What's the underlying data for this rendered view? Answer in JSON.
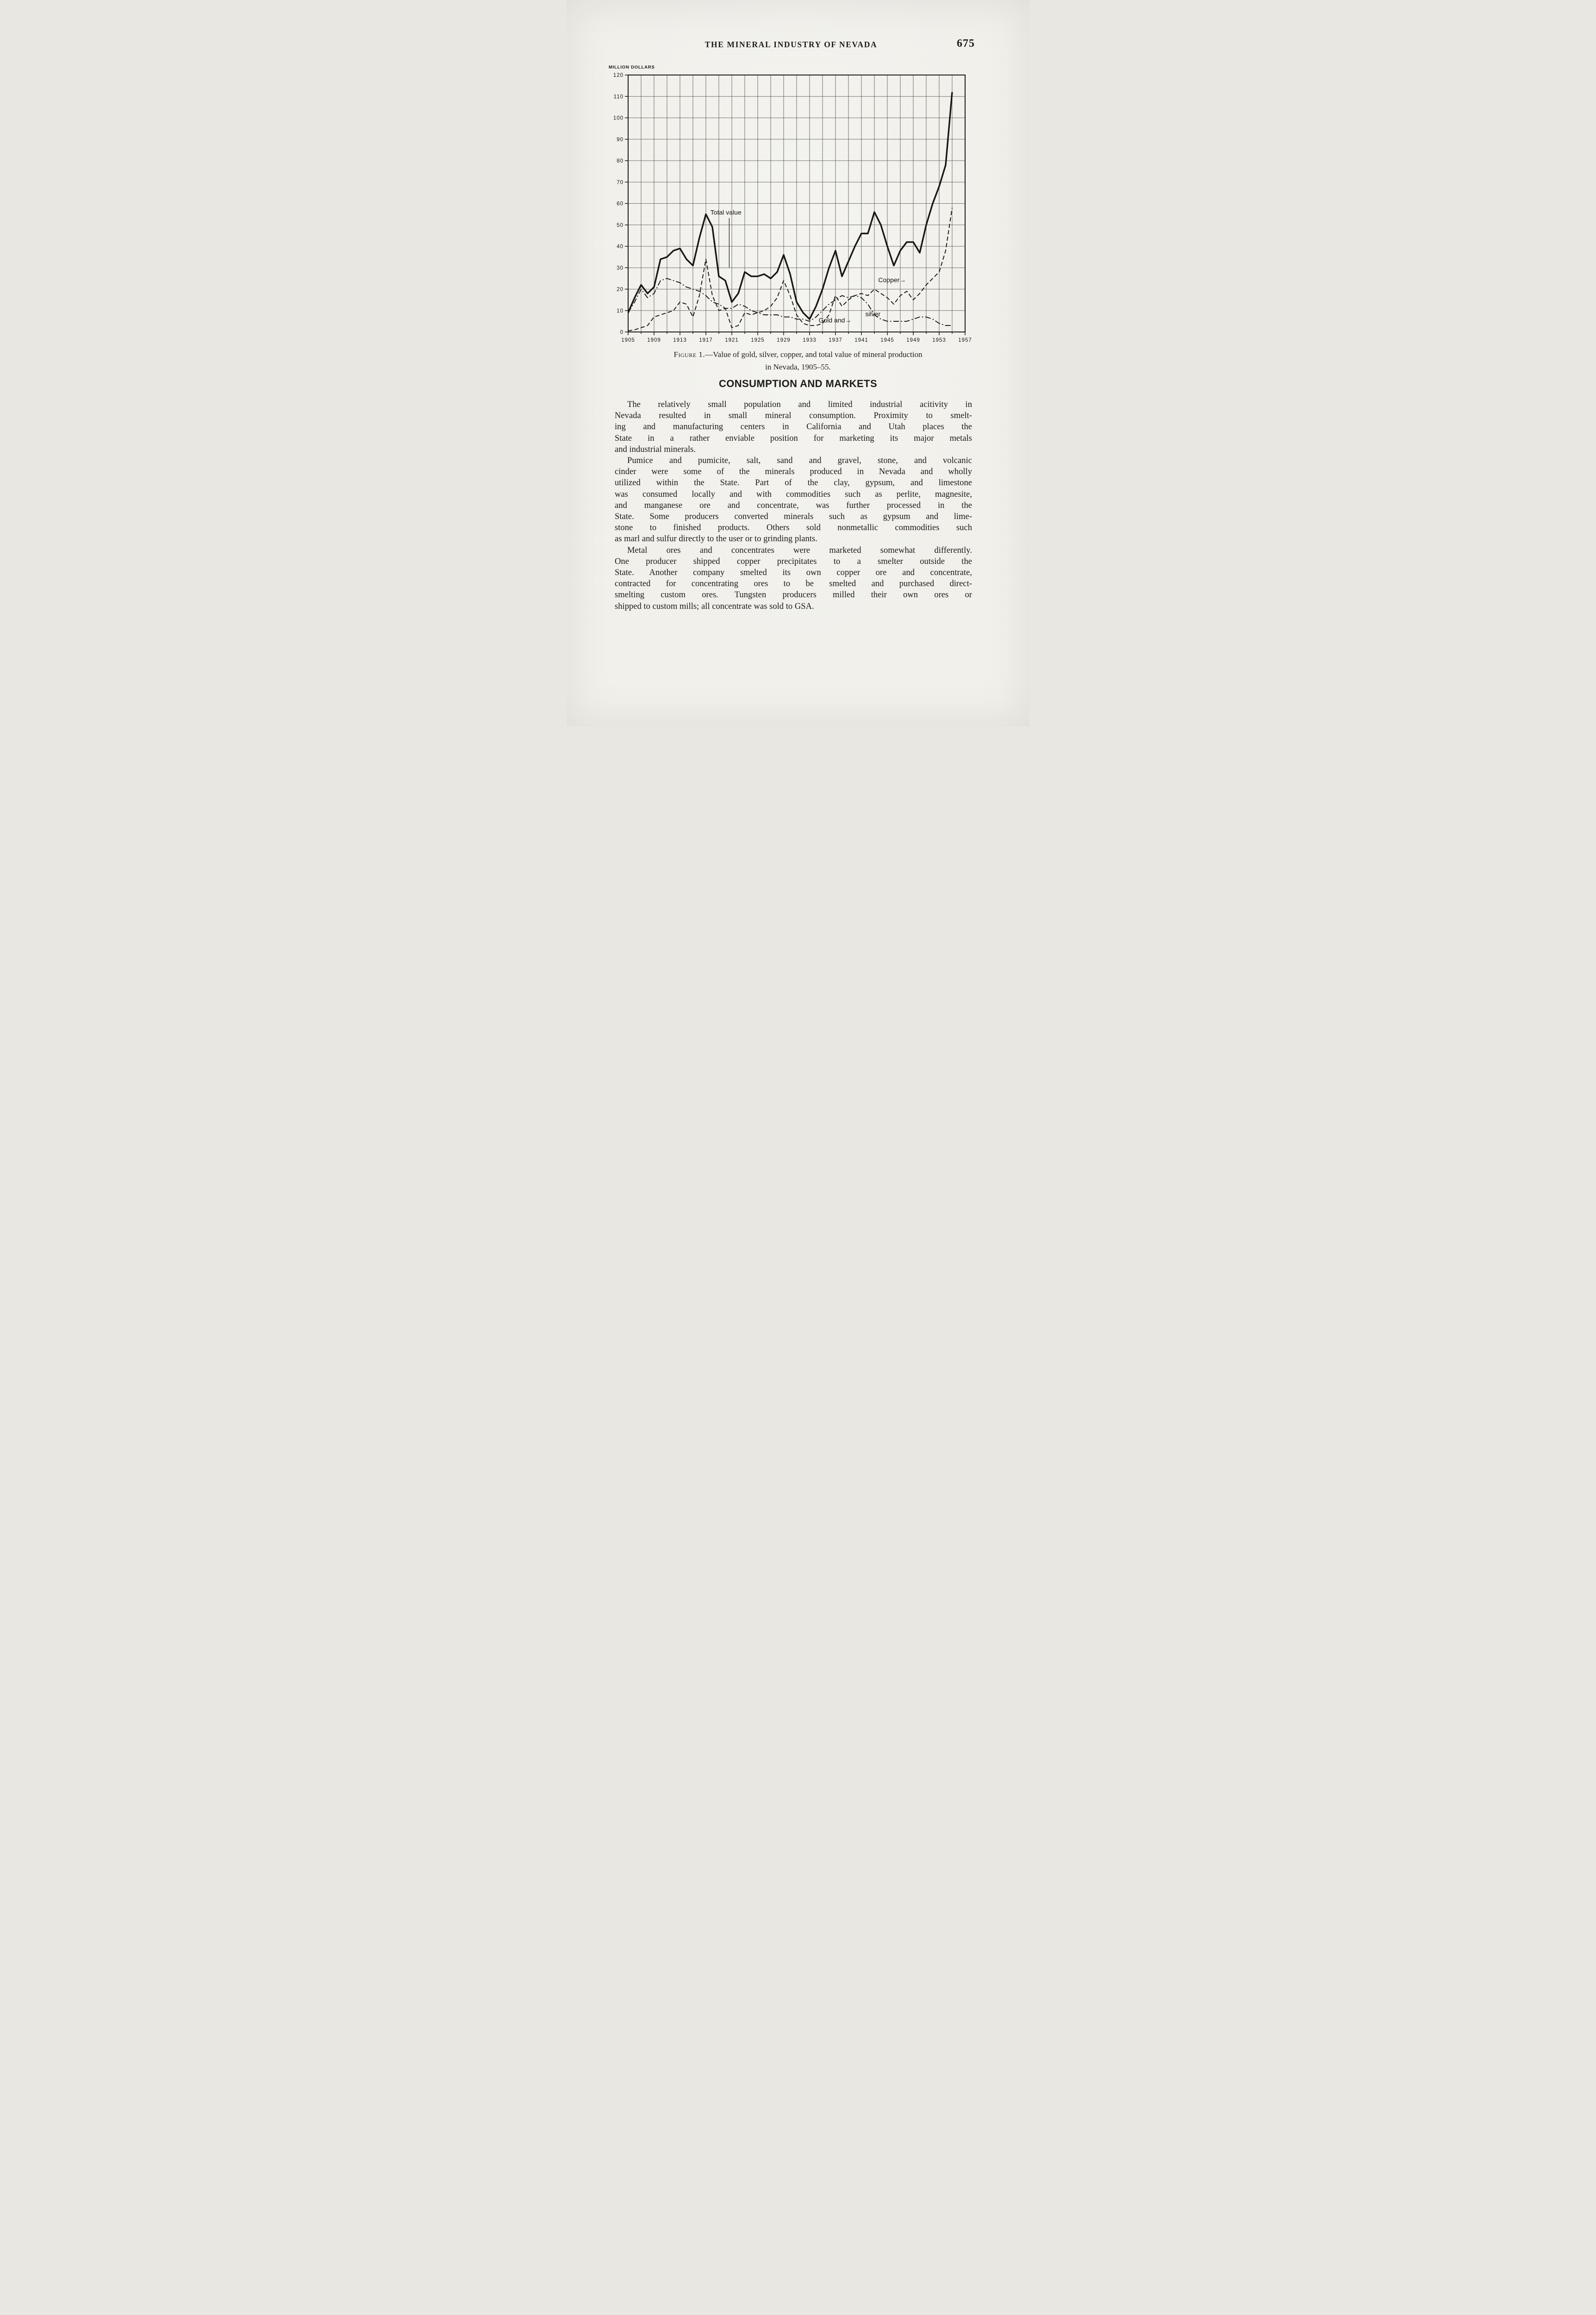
{
  "page": {
    "header_title": "THE MINERAL INDUSTRY OF NEVADA",
    "page_number": "675"
  },
  "figure": {
    "caption_label": "Figure 1.",
    "caption_text": "—Value of gold, silver, copper, and total value of mineral production",
    "caption_line2": "in Nevada, 1905–55."
  },
  "chart_data": {
    "type": "line",
    "title": "",
    "xlabel": "",
    "ylabel": "MILLION DOLLARS",
    "ylim": [
      0,
      120
    ],
    "ytick_step": 10,
    "xlim": [
      1905,
      1957
    ],
    "xgrid_step": 2,
    "xtick_step": 4,
    "x_tick_labels": [
      "1905",
      "1909",
      "1913",
      "1917",
      "1921",
      "1925",
      "1929",
      "1933",
      "1937",
      "1941",
      "1945",
      "1949",
      "1953",
      "1957"
    ],
    "x_start": 1905,
    "x_step": 1,
    "grid": true,
    "legend_position": "none",
    "series": [
      {
        "name": "Total value",
        "style": "solid",
        "width": 3.4,
        "values": [
          9,
          16,
          22,
          18,
          21,
          34,
          35,
          38,
          39,
          34,
          31,
          44,
          55,
          49,
          26,
          24,
          14,
          18,
          28,
          26,
          26,
          27,
          25,
          28,
          36,
          27,
          14,
          9,
          6,
          12,
          20,
          30,
          38,
          26,
          33,
          40,
          46,
          46,
          56,
          50,
          40,
          31,
          38,
          42,
          42,
          37,
          50,
          60,
          68,
          78,
          112
        ]
      },
      {
        "name": "Copper",
        "style": "dashed",
        "width": 1.9,
        "values": [
          0.5,
          1,
          2,
          3,
          7,
          8,
          9,
          10,
          14,
          13,
          7,
          17,
          34,
          17,
          10,
          11,
          2,
          3,
          9,
          8,
          9,
          10,
          12,
          16,
          24,
          17,
          8,
          4,
          3,
          3,
          4,
          8,
          17,
          12,
          15,
          17,
          18,
          17,
          20,
          18,
          16,
          13,
          17,
          19,
          15,
          18,
          22,
          25,
          28,
          38,
          58
        ]
      },
      {
        "name": "Gold and silver",
        "style": "dashdot",
        "width": 1.9,
        "values": [
          9,
          14,
          20,
          16,
          18,
          24,
          25,
          24,
          23,
          21,
          20,
          19,
          17,
          14,
          13,
          11,
          11,
          13,
          12,
          10,
          9,
          8,
          8,
          8,
          7,
          7,
          6,
          6,
          5,
          7,
          10,
          13,
          15,
          17,
          16,
          17,
          16,
          13,
          8,
          6,
          5,
          5,
          5,
          5,
          6,
          7,
          7,
          6,
          4,
          3,
          3
        ]
      }
    ],
    "annotations": [
      {
        "text": "Total value",
        "x": 1917.7,
        "y": 54.8,
        "leader": [
          1920.6,
          53.2,
          1920.6,
          30
        ]
      },
      {
        "text": "Copper→",
        "x": 1943.6,
        "y": 23.2
      },
      {
        "text": "Gold and→",
        "x": 1934.4,
        "y": 4.4
      },
      {
        "text": "silver",
        "x": 1941.6,
        "y": 7.4
      }
    ]
  },
  "content": {
    "section_heading": "CONSUMPTION AND MARKETS",
    "paragraphs": [
      {
        "lines": [
          "The relatively small population and limited industrial acitivity in",
          "Nevada resulted in small mineral consumption.  Proximity to smelt-",
          "ing and manufacturing centers in California and Utah places the",
          "State in a rather enviable position for marketing its major metals",
          "and industrial minerals."
        ]
      },
      {
        "lines": [
          "Pumice and pumicite, salt, sand and gravel, stone, and volcanic",
          "cinder were some of the minerals produced in Nevada and wholly",
          "utilized within the State.  Part of the clay, gypsum, and limestone",
          "was consumed locally and with commodities such as perlite, magnesite,",
          "and manganese ore and concentrate, was further processed in the",
          "State.  Some producers converted minerals such as gypsum and lime-",
          "stone to finished products.  Others sold nonmetallic commodities such",
          "as marl and sulfur directly to the user or to grinding plants."
        ]
      },
      {
        "lines": [
          "Metal ores and concentrates were marketed somewhat differently.",
          "One producer shipped copper precipitates to a smelter outside the",
          "State.  Another company smelted its own copper ore and concentrate,",
          "contracted for concentrating ores to be smelted and purchased direct-",
          "smelting custom ores.  Tungsten producers milled their own ores or",
          "shipped to custom mills; all concentrate was sold to GSA."
        ]
      }
    ]
  }
}
